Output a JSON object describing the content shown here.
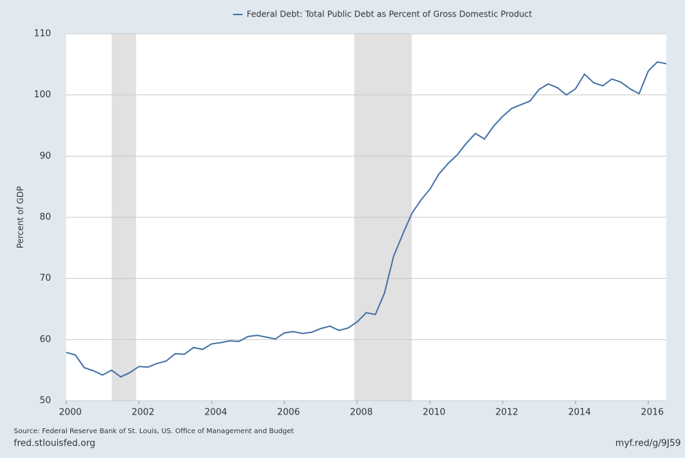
{
  "chart_data": {
    "type": "line",
    "legend_position": "top",
    "ylabel": "Percent of GDP",
    "source": "Source: Federal Reserve Bank of St. Louis, US. Office of Management and Budget",
    "site": "fred.stlouisfed.org",
    "link": "myf.red/g/9J59",
    "x": [
      2000,
      2000.25,
      2000.5,
      2000.75,
      2001,
      2001.25,
      2001.5,
      2001.75,
      2002,
      2002.25,
      2002.5,
      2002.75,
      2003,
      2003.25,
      2003.5,
      2003.75,
      2004,
      2004.25,
      2004.5,
      2004.75,
      2005,
      2005.25,
      2005.5,
      2005.75,
      2006,
      2006.25,
      2006.5,
      2006.75,
      2007,
      2007.25,
      2007.5,
      2007.75,
      2008,
      2008.25,
      2008.5,
      2008.75,
      2009,
      2009.25,
      2009.5,
      2009.75,
      2010,
      2010.25,
      2010.5,
      2010.75,
      2011,
      2011.25,
      2011.5,
      2011.75,
      2012,
      2012.25,
      2012.5,
      2012.75,
      2013,
      2013.25,
      2013.5,
      2013.75,
      2014,
      2014.25,
      2014.5,
      2014.75,
      2015,
      2015.25,
      2015.5,
      2015.75,
      2016,
      2016.25,
      2016.5
    ],
    "series": [
      {
        "name": "Federal Debt: Total Public Debt as Percent of Gross Domestic Product",
        "color": "#4572a7",
        "values": [
          57.9,
          57.5,
          55.4,
          54.9,
          54.2,
          55.0,
          53.9,
          54.6,
          55.6,
          55.5,
          56.1,
          56.5,
          57.7,
          57.6,
          58.7,
          58.4,
          59.3,
          59.5,
          59.8,
          59.7,
          60.5,
          60.7,
          60.4,
          60.1,
          61.1,
          61.3,
          61.0,
          61.2,
          61.8,
          62.2,
          61.5,
          61.9,
          62.9,
          64.4,
          64.1,
          67.6,
          73.6,
          77.2,
          80.6,
          82.8,
          84.6,
          87.1,
          88.8,
          90.2,
          92.1,
          93.7,
          92.8,
          94.9,
          96.5,
          97.8,
          98.4,
          99.0,
          100.9,
          101.8,
          101.2,
          100.0,
          101.0,
          103.4,
          102.0,
          101.5,
          102.6,
          102.1,
          101.0,
          100.2,
          103.9,
          105.4,
          105.1
        ]
      }
    ],
    "recessions": [
      [
        2001.25,
        2001.92
      ],
      [
        2007.92,
        2009.5
      ]
    ],
    "recession_color": "#e1e1e1",
    "xlim": [
      2000,
      2016.5
    ],
    "xticks": [
      2000,
      2002,
      2004,
      2006,
      2008,
      2010,
      2012,
      2014,
      2016
    ],
    "ylim": [
      50,
      110
    ],
    "yticks": [
      50,
      60,
      70,
      80,
      90,
      100,
      110
    ],
    "grid": true
  }
}
